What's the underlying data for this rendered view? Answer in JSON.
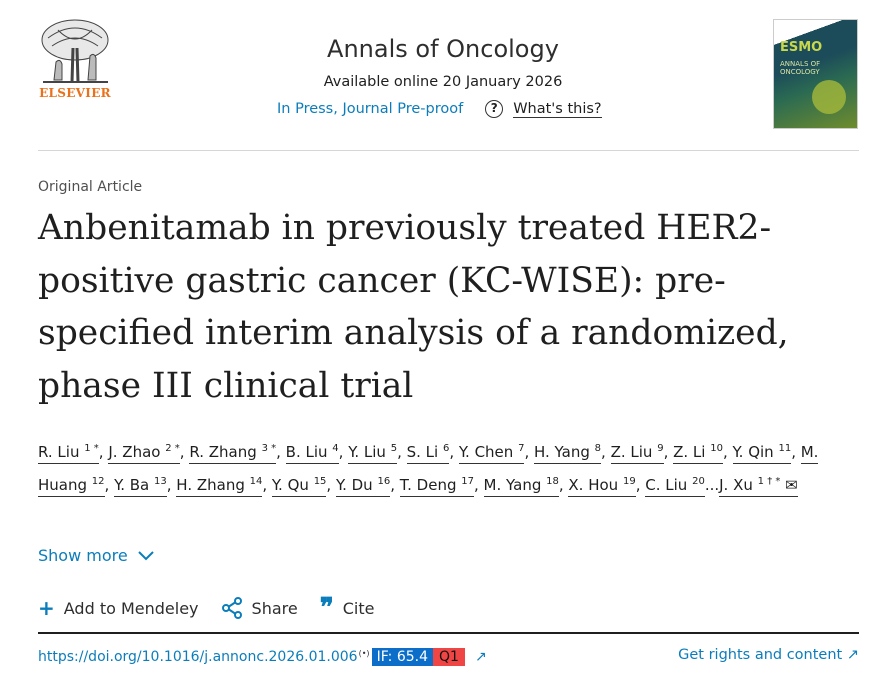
{
  "publisher": {
    "name": "ELSEVIER"
  },
  "header": {
    "journal": "Annals of Oncology",
    "available": "Available online 20 January 2026",
    "status": "In Press, Journal Pre-proof",
    "help_link": "What's this?"
  },
  "cover": {
    "brand": "ESMO",
    "title": "ANNALS OF ONCOLOGY"
  },
  "article": {
    "type": "Original Article",
    "title": "Anbenitamab in previously treated HER2-positive gastric cancer (KC-WISE): pre-specified interim analysis of a randomized, phase III clinical trial"
  },
  "authors": [
    {
      "name": "R. Liu",
      "sup": "1 *",
      "sep": ", "
    },
    {
      "name": "J. Zhao",
      "sup": "2 *",
      "sep": ", "
    },
    {
      "name": "R. Zhang",
      "sup": "3 *",
      "sep": ", "
    },
    {
      "name": "B. Liu",
      "sup": "4",
      "sep": ", "
    },
    {
      "name": "Y. Liu",
      "sup": "5",
      "sep": ", "
    },
    {
      "name": "S. Li",
      "sup": "6",
      "sep": ", "
    },
    {
      "name": "Y. Chen",
      "sup": "7",
      "sep": ", "
    },
    {
      "name": "H. Yang",
      "sup": "8",
      "sep": ", "
    },
    {
      "name": "Z. Liu",
      "sup": "9",
      "sep": ", "
    },
    {
      "name": "Z. Li",
      "sup": "10",
      "sep": ", "
    },
    {
      "name": "Y. Qin",
      "sup": "11",
      "sep": ", "
    },
    {
      "name": "M. Huang",
      "sup": "12",
      "sep": ", "
    },
    {
      "name": "Y. Ba",
      "sup": "13",
      "sep": ", "
    },
    {
      "name": "H. Zhang",
      "sup": "14",
      "sep": ", "
    },
    {
      "name": "Y. Qu",
      "sup": "15",
      "sep": ", "
    },
    {
      "name": "Y. Du",
      "sup": "16",
      "sep": ", "
    },
    {
      "name": "T. Deng",
      "sup": "17",
      "sep": ", "
    },
    {
      "name": "M. Yang",
      "sup": "18",
      "sep": ", "
    },
    {
      "name": "X. Hou",
      "sup": "19",
      "sep": ", "
    },
    {
      "name": "C. Liu",
      "sup": "20",
      "sep": "..."
    },
    {
      "name": "J. Xu",
      "sup": "1 † *",
      "sep": ""
    }
  ],
  "show_more": "Show more",
  "actions": {
    "mendeley": "Add to Mendeley",
    "share": "Share",
    "cite": "Cite"
  },
  "footer": {
    "doi": "https://doi.org/10.1016/j.annonc.2026.01.006",
    "if_badge": "IF: 65.4",
    "quartile": "Q1",
    "rights": "Get rights and content"
  },
  "colors": {
    "link": "#0c7dbb",
    "publisher": "#e9711c",
    "if_badge": "#0c6ec8",
    "q1_badge": "#f04545"
  }
}
